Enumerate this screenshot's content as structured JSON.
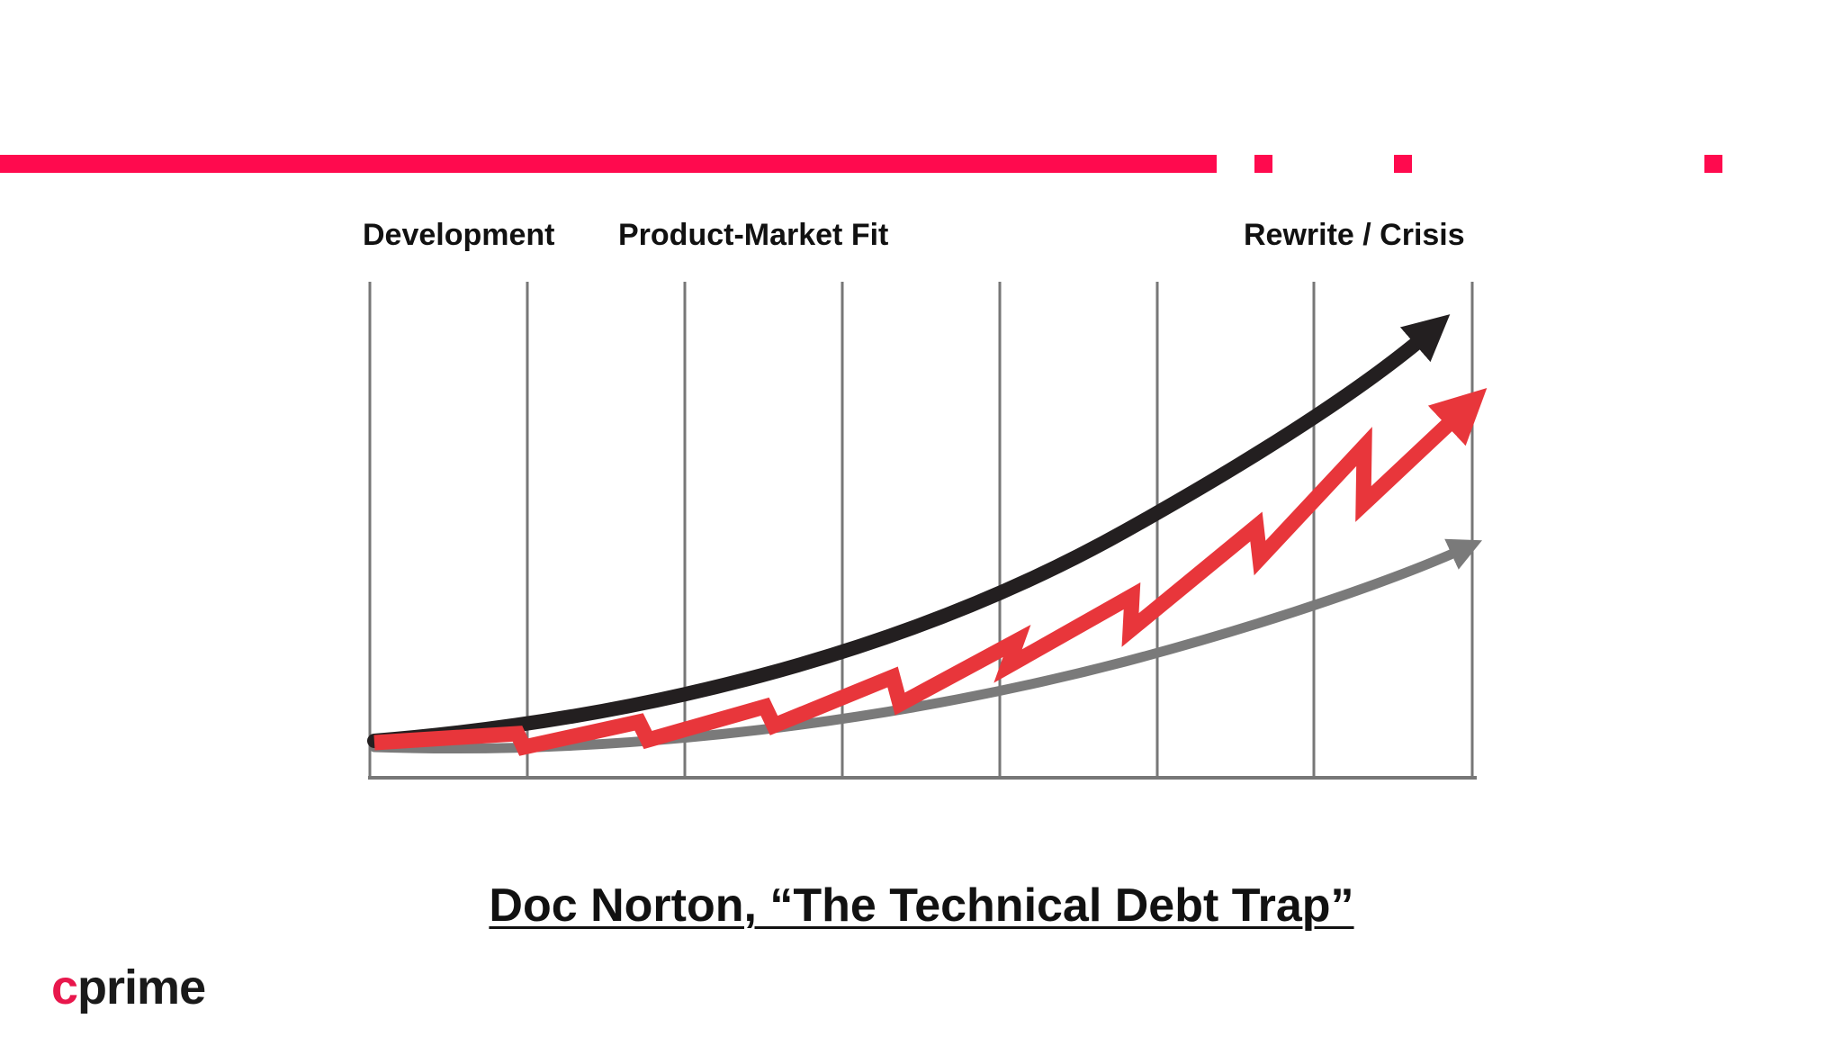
{
  "slide": {
    "phase_labels": [
      "Development",
      "Product-Market Fit",
      "Rewrite / Crisis"
    ],
    "caption": "Doc Norton, “The Technical Debt Trap”",
    "logo": {
      "accent": "c",
      "rest": "prime"
    }
  },
  "colors": {
    "brand_accent": "#ff0a4e",
    "curve_top": "#231f20",
    "curve_sawtooth": "#e8363b",
    "curve_bottom": "#7a7a7a",
    "grid": "#777777"
  },
  "diagram": {
    "type": "conceptual-line-diagram",
    "lines": [
      {
        "shape": "exponential-curve",
        "color": "curve_top"
      },
      {
        "shape": "sawtooth-rising",
        "color": "curve_sawtooth"
      },
      {
        "shape": "exponential-curve",
        "color": "curve_bottom"
      }
    ],
    "vertical_gridlines": 8
  }
}
